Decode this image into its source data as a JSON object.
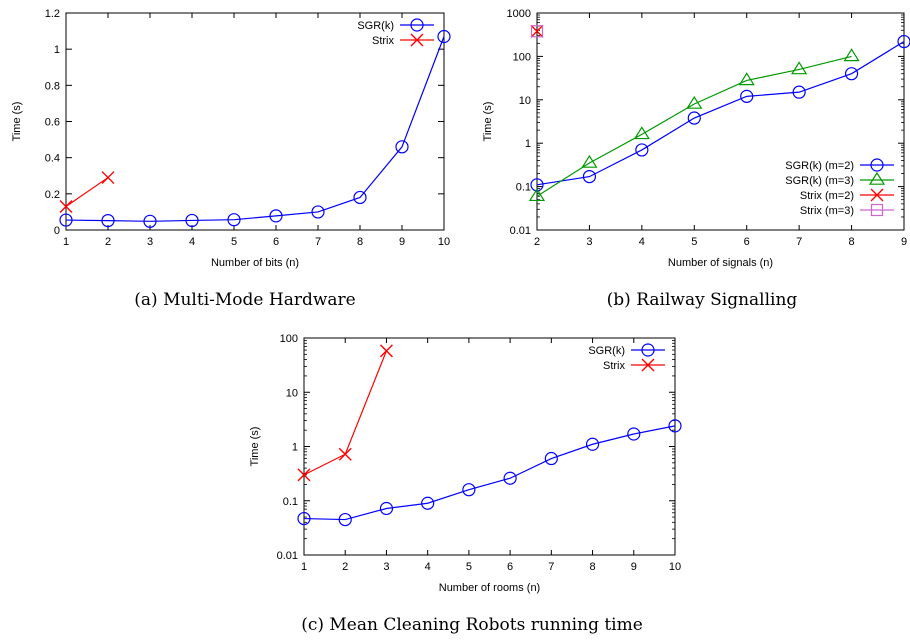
{
  "chart_data": [
    {
      "type": "line",
      "caption": "(a) Multi-Mode Hardware",
      "xlabel": "Number of bits (n)",
      "ylabel": "Time (s)",
      "yscale": "linear",
      "xlim": [
        1,
        10
      ],
      "ylim": [
        0,
        1.2
      ],
      "xticks": [
        "1",
        "2",
        "3",
        "4",
        "5",
        "6",
        "7",
        "8",
        "9",
        "10"
      ],
      "yticks": [
        "0",
        "0.2",
        "0.4",
        "0.6",
        "0.8",
        "1",
        "1.2"
      ],
      "legend_position": "top-right",
      "series": [
        {
          "name": "SGR(k)",
          "color": "#0000ff",
          "marker": "circle",
          "x": [
            1,
            2,
            3,
            4,
            5,
            6,
            7,
            8,
            9,
            10
          ],
          "values": [
            0.055,
            0.052,
            0.048,
            0.053,
            0.057,
            0.078,
            0.1,
            0.18,
            0.46,
            1.07
          ]
        },
        {
          "name": "Strix",
          "color": "#ff0000",
          "marker": "x",
          "x": [
            1,
            2
          ],
          "values": [
            0.13,
            0.29
          ]
        }
      ]
    },
    {
      "type": "line",
      "caption": "(b) Railway Signalling",
      "xlabel": "Number of signals (n)",
      "ylabel": "Time (s)",
      "yscale": "log",
      "xlim": [
        2,
        9
      ],
      "ylim": [
        0.01,
        1000
      ],
      "xticks": [
        "2",
        "3",
        "4",
        "5",
        "6",
        "7",
        "8",
        "9"
      ],
      "yticks": [
        "0.01",
        "0.1",
        "1",
        "10",
        "100",
        "1000"
      ],
      "legend_position": "bottom-right",
      "series": [
        {
          "name": "SGR(k) (m=2)",
          "color": "#0000ff",
          "marker": "circle",
          "x": [
            2,
            3,
            4,
            5,
            6,
            7,
            8,
            9
          ],
          "values": [
            0.11,
            0.17,
            0.7,
            3.8,
            12,
            15,
            40,
            220
          ]
        },
        {
          "name": "SGR(k) (m=3)",
          "color": "#009900",
          "marker": "triangle",
          "x": [
            2,
            3,
            4,
            5,
            6,
            7,
            8
          ],
          "values": [
            0.06,
            0.35,
            1.6,
            8,
            28,
            50,
            100
          ]
        },
        {
          "name": "Strix (m=2)",
          "color": "#ff0000",
          "marker": "x",
          "x": [
            2
          ],
          "values": [
            380
          ]
        },
        {
          "name": "Strix (m=3)",
          "color": "#cc66cc",
          "marker": "square",
          "x": [
            2
          ],
          "values": [
            380
          ]
        }
      ]
    },
    {
      "type": "line",
      "caption": "(c) Mean Cleaning Robots running time",
      "xlabel": "Number of rooms (n)",
      "ylabel": "Time (s)",
      "yscale": "log",
      "xlim": [
        1,
        10
      ],
      "ylim": [
        0.01,
        100
      ],
      "xticks": [
        "1",
        "2",
        "3",
        "4",
        "5",
        "6",
        "7",
        "8",
        "9",
        "10"
      ],
      "yticks": [
        "0.01",
        "0.1",
        "1",
        "10",
        "100"
      ],
      "legend_position": "top-right",
      "series": [
        {
          "name": "SGR(k)",
          "color": "#0000ff",
          "marker": "circle",
          "x": [
            1,
            2,
            3,
            4,
            5,
            6,
            7,
            8,
            9,
            10
          ],
          "values": [
            0.047,
            0.045,
            0.072,
            0.09,
            0.16,
            0.26,
            0.6,
            1.1,
            1.7,
            2.4
          ]
        },
        {
          "name": "Strix",
          "color": "#ff0000",
          "marker": "x",
          "x": [
            1,
            2,
            3
          ],
          "values": [
            0.3,
            0.72,
            58
          ]
        }
      ]
    }
  ]
}
